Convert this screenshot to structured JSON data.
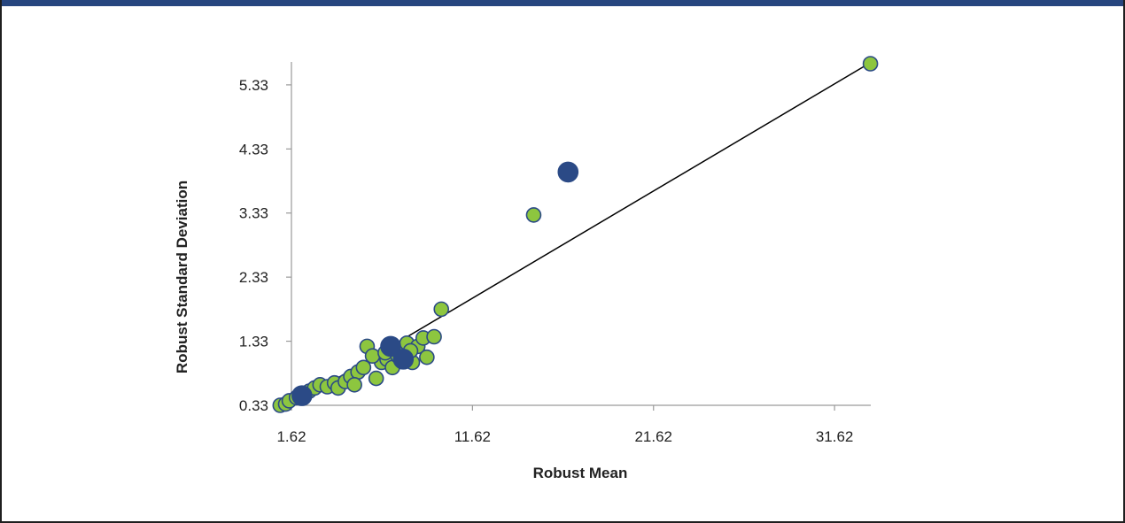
{
  "chart_data": {
    "type": "scatter",
    "title": "",
    "xlabel": "Robust Mean",
    "ylabel": "Robust Standard Deviation",
    "xlim": [
      1.62,
      33.62
    ],
    "ylim": [
      0.33,
      5.66
    ],
    "x_ticks": [
      "1.62",
      "11.62",
      "21.62",
      "31.62"
    ],
    "y_ticks": [
      "0.33",
      "1.33",
      "2.33",
      "3.33",
      "4.33",
      "5.33"
    ],
    "grid": false,
    "legend": "none",
    "trendline": {
      "x": [
        1.62,
        33.5
      ],
      "y": [
        0.33,
        5.66
      ]
    },
    "series": [
      {
        "color": "#8dc63f",
        "edge_color": "#2b4a86",
        "marker_size": "small",
        "points": [
          [
            1.0,
            0.33
          ],
          [
            1.3,
            0.35
          ],
          [
            1.5,
            0.4
          ],
          [
            1.9,
            0.45
          ],
          [
            2.2,
            0.5
          ],
          [
            2.6,
            0.55
          ],
          [
            2.9,
            0.6
          ],
          [
            3.2,
            0.65
          ],
          [
            3.6,
            0.62
          ],
          [
            4.0,
            0.68
          ],
          [
            4.2,
            0.6
          ],
          [
            4.6,
            0.7
          ],
          [
            4.9,
            0.78
          ],
          [
            5.3,
            0.85
          ],
          [
            5.6,
            0.92
          ],
          [
            5.1,
            0.65
          ],
          [
            6.3,
            0.75
          ],
          [
            6.6,
            1.0
          ],
          [
            6.9,
            1.05
          ],
          [
            7.2,
            0.92
          ],
          [
            7.5,
            1.1
          ],
          [
            7.8,
            1.2
          ],
          [
            8.0,
            1.3
          ],
          [
            8.3,
            1.0
          ],
          [
            8.6,
            1.25
          ],
          [
            8.9,
            1.38
          ],
          [
            9.1,
            1.08
          ],
          [
            9.5,
            1.4
          ],
          [
            5.8,
            1.25
          ],
          [
            6.1,
            1.1
          ],
          [
            7.0,
            1.25
          ],
          [
            6.8,
            1.15
          ],
          [
            8.2,
            1.18
          ],
          [
            9.9,
            1.83
          ],
          [
            15.0,
            3.3
          ],
          [
            33.6,
            5.66
          ]
        ]
      },
      {
        "color": "#2b4a86",
        "edge_color": "#2b4a86",
        "marker_size": "large",
        "points": [
          [
            2.2,
            0.48
          ],
          [
            7.1,
            1.25
          ],
          [
            7.8,
            1.05
          ],
          [
            16.9,
            3.97
          ]
        ]
      }
    ]
  }
}
